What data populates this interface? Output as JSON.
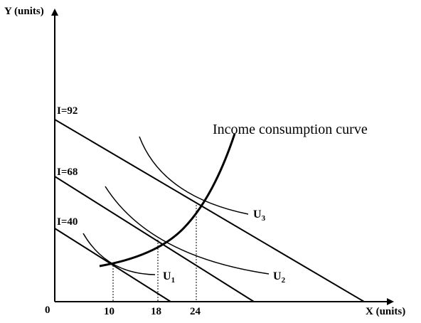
{
  "axes": {
    "y_label": "Y (units)",
    "x_label": "X (units)",
    "origin_label": "0"
  },
  "budget_lines": [
    {
      "label": "I=92"
    },
    {
      "label": "I=68"
    },
    {
      "label": "I=40"
    }
  ],
  "x_ticks": [
    "10",
    "18",
    "24"
  ],
  "indifference_curves": [
    {
      "label": "U",
      "subscript": "1"
    },
    {
      "label": "U",
      "subscript": "2"
    },
    {
      "label": "U",
      "subscript": "3"
    }
  ],
  "icc_label": "Income consumption curve"
}
